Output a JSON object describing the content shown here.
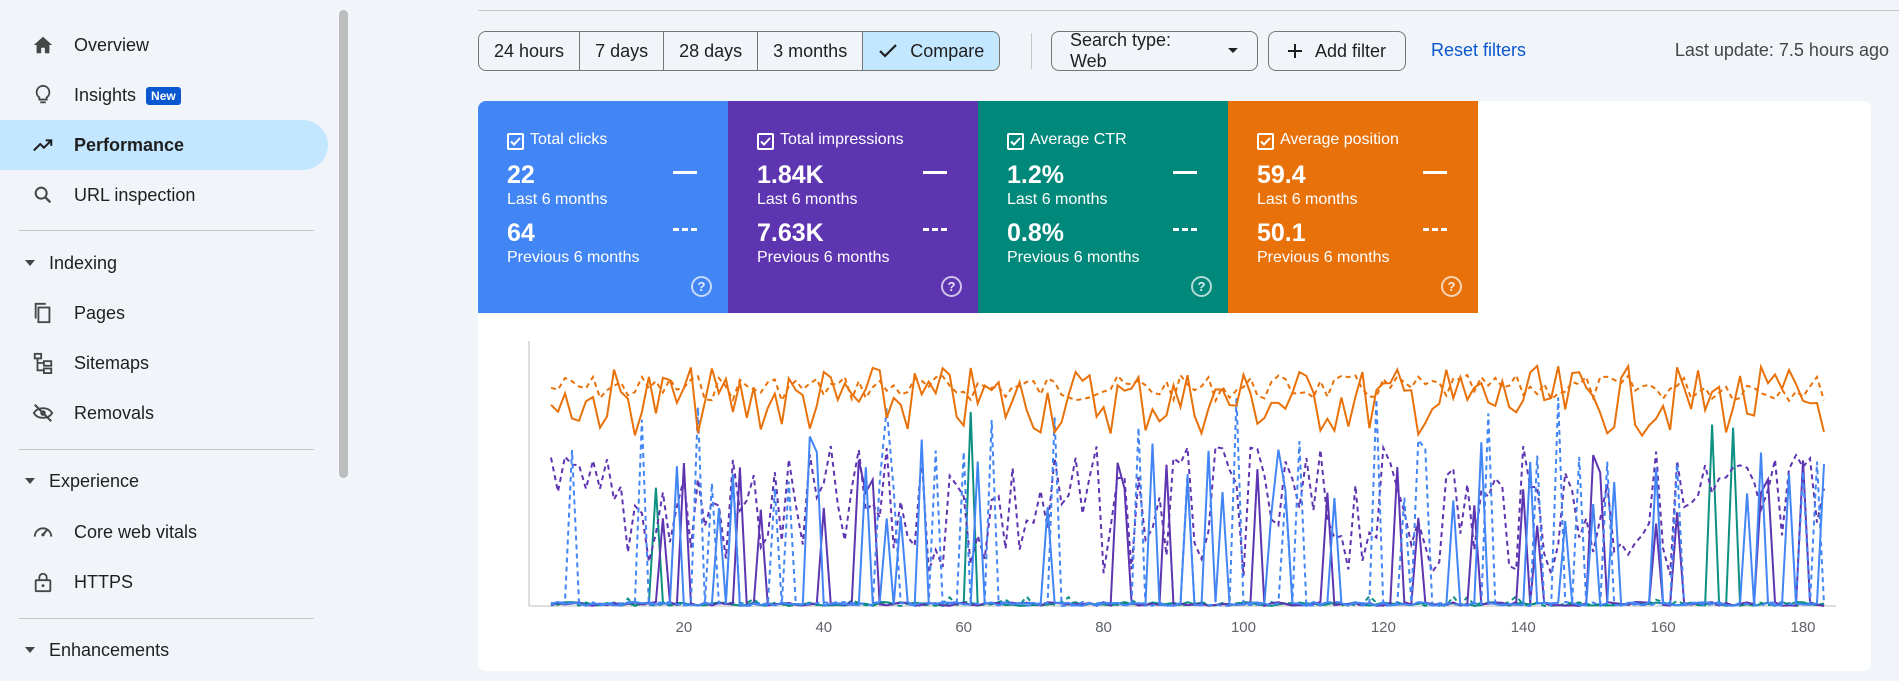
{
  "sidebar": {
    "items": [
      {
        "label": "Overview",
        "icon": "home-icon"
      },
      {
        "label": "Insights",
        "badge": "New",
        "icon": "lightbulb-icon"
      },
      {
        "label": "Performance",
        "icon": "trending-up-icon",
        "active": true
      },
      {
        "label": "URL inspection",
        "icon": "search-icon"
      }
    ],
    "sections": [
      {
        "label": "Indexing",
        "items": [
          "Pages",
          "Sitemaps",
          "Removals"
        ]
      },
      {
        "label": "Experience",
        "items": [
          "Core web vitals",
          "HTTPS"
        ]
      },
      {
        "label": "Enhancements",
        "items": []
      }
    ]
  },
  "toolbar": {
    "ranges": [
      "24 hours",
      "7 days",
      "28 days",
      "3 months"
    ],
    "compare_label": "Compare",
    "search_type_label": "Search type: Web",
    "add_filter_label": "Add filter",
    "reset_filters_label": "Reset filters",
    "last_update": "Last update: 7.5 hours ago"
  },
  "metrics": [
    {
      "label": "Total clicks",
      "current": "22",
      "current_period": "Last 6 months",
      "previous": "64",
      "previous_period": "Previous 6 months",
      "color": "#4285f4"
    },
    {
      "label": "Total impressions",
      "current": "1.84K",
      "current_period": "Last 6 months",
      "previous": "7.63K",
      "previous_period": "Previous 6 months",
      "color": "#5e35b1"
    },
    {
      "label": "Average CTR",
      "current": "1.2%",
      "current_period": "Last 6 months",
      "previous": "0.8%",
      "previous_period": "Previous 6 months",
      "color": "#00897b"
    },
    {
      "label": "Average position",
      "current": "59.4",
      "current_period": "Last 6 months",
      "previous": "50.1",
      "previous_period": "Previous 6 months",
      "color": "#e8710a"
    }
  ],
  "chart_data": {
    "type": "line",
    "x_ticks": [
      "20",
      "40",
      "60",
      "80",
      "100",
      "120",
      "140",
      "160",
      "180"
    ],
    "xlim": [
      1,
      183
    ],
    "grid": false,
    "legend": "none",
    "series_styles": [
      {
        "metric": "clicks",
        "period": "current",
        "style": "solid",
        "color": "#4285f4"
      },
      {
        "metric": "clicks",
        "period": "previous",
        "style": "dashed",
        "color": "#4285f4"
      },
      {
        "metric": "impressions",
        "period": "current",
        "style": "solid",
        "color": "#5e35b1"
      },
      {
        "metric": "impressions",
        "period": "previous",
        "style": "dashed",
        "color": "#5e35b1"
      },
      {
        "metric": "ctr",
        "period": "current",
        "style": "solid",
        "color": "#00897b"
      },
      {
        "metric": "ctr",
        "period": "previous",
        "style": "dashed",
        "color": "#00897b"
      },
      {
        "metric": "position",
        "period": "current",
        "style": "solid",
        "color": "#e8710a"
      },
      {
        "metric": "position",
        "period": "previous",
        "style": "dashed",
        "color": "#e8710a"
      }
    ]
  }
}
